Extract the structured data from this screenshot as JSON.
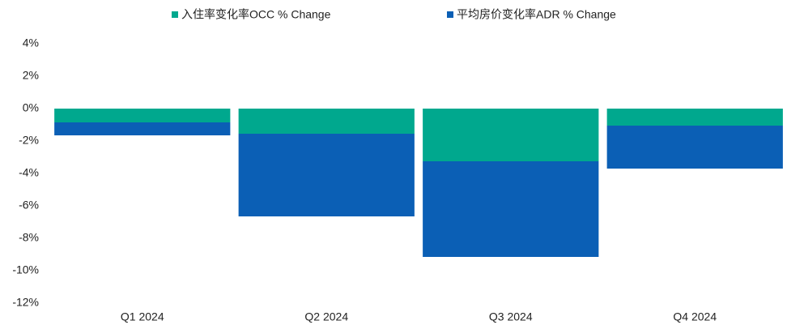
{
  "chart_data": {
    "type": "stacked_bar",
    "categories": [
      "Q1 2024",
      "Q2 2024",
      "Q3 2024",
      "Q4 2024"
    ],
    "series": [
      {
        "name": "入住率变化率OCC % Change",
        "color": "#00a88e",
        "values": [
          -0.85,
          -1.55,
          -3.25,
          -1.05
        ]
      },
      {
        "name": "平均房价变化率ADR % Change",
        "color": "#0b5fb5",
        "values": [
          -0.8,
          -5.1,
          -5.9,
          -2.65
        ]
      }
    ],
    "ylim": [
      -12,
      4
    ],
    "yticks": [
      {
        "value": -12,
        "label": "-12%"
      },
      {
        "value": -10,
        "label": "-10%"
      },
      {
        "value": -8,
        "label": "-8%"
      },
      {
        "value": -6,
        "label": "-6%"
      },
      {
        "value": -4,
        "label": "-4%"
      },
      {
        "value": -2,
        "label": "-2%"
      },
      {
        "value": 0,
        "label": "0%"
      },
      {
        "value": 2,
        "label": "2%"
      },
      {
        "value": 4,
        "label": "4%"
      }
    ],
    "legend": "top"
  }
}
